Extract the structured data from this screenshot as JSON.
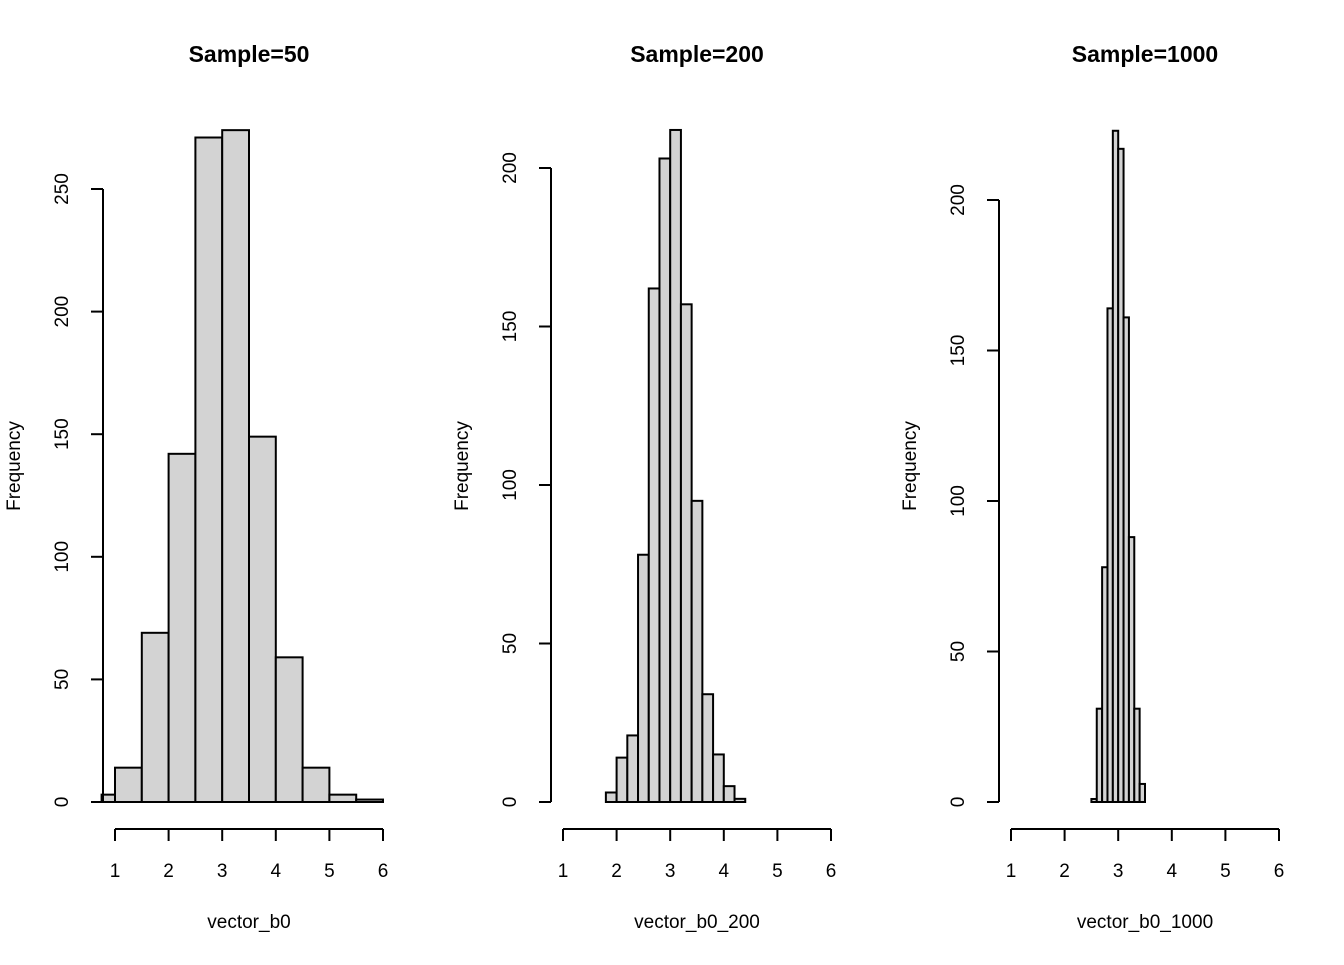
{
  "colors": {
    "bar_fill": "#d3d3d3",
    "bar_stroke": "#000000",
    "axis": "#000000",
    "background": "#ffffff"
  },
  "chart_data": [
    {
      "type": "bar",
      "title": "Sample=50",
      "xlabel": "vector_b0",
      "ylabel": "Frequency",
      "xlim": [
        1,
        6
      ],
      "xticks": [
        1,
        2,
        3,
        4,
        5,
        6
      ],
      "yticks": [
        0,
        50,
        100,
        150,
        200,
        250
      ],
      "grid": false,
      "legend": "none",
      "bins": [
        {
          "x0": 0.75,
          "x1": 1.0,
          "count": 3
        },
        {
          "x0": 1.0,
          "x1": 1.5,
          "count": 14
        },
        {
          "x0": 1.5,
          "x1": 2.0,
          "count": 69
        },
        {
          "x0": 2.0,
          "x1": 2.5,
          "count": 142
        },
        {
          "x0": 2.5,
          "x1": 3.0,
          "count": 271
        },
        {
          "x0": 3.0,
          "x1": 3.5,
          "count": 274
        },
        {
          "x0": 3.5,
          "x1": 4.0,
          "count": 149
        },
        {
          "x0": 4.0,
          "x1": 4.5,
          "count": 59
        },
        {
          "x0": 4.5,
          "x1": 5.0,
          "count": 14
        },
        {
          "x0": 5.0,
          "x1": 5.5,
          "count": 3
        },
        {
          "x0": 5.5,
          "x1": 6.0,
          "count": 1
        }
      ]
    },
    {
      "type": "bar",
      "title": "Sample=200",
      "xlabel": "vector_b0_200",
      "ylabel": "Frequency",
      "xlim": [
        1,
        6
      ],
      "xticks": [
        1,
        2,
        3,
        4,
        5,
        6
      ],
      "yticks": [
        0,
        50,
        100,
        150,
        200
      ],
      "grid": false,
      "legend": "none",
      "bins": [
        {
          "x0": 1.8,
          "x1": 2.0,
          "count": 3
        },
        {
          "x0": 2.0,
          "x1": 2.2,
          "count": 14
        },
        {
          "x0": 2.2,
          "x1": 2.4,
          "count": 21
        },
        {
          "x0": 2.4,
          "x1": 2.6,
          "count": 78
        },
        {
          "x0": 2.6,
          "x1": 2.8,
          "count": 162
        },
        {
          "x0": 2.8,
          "x1": 3.0,
          "count": 203
        },
        {
          "x0": 3.0,
          "x1": 3.2,
          "count": 212
        },
        {
          "x0": 3.2,
          "x1": 3.4,
          "count": 157
        },
        {
          "x0": 3.4,
          "x1": 3.6,
          "count": 95
        },
        {
          "x0": 3.6,
          "x1": 3.8,
          "count": 34
        },
        {
          "x0": 3.8,
          "x1": 4.0,
          "count": 15
        },
        {
          "x0": 4.0,
          "x1": 4.2,
          "count": 5
        },
        {
          "x0": 4.2,
          "x1": 4.4,
          "count": 1
        }
      ]
    },
    {
      "type": "bar",
      "title": "Sample=1000",
      "xlabel": "vector_b0_1000",
      "ylabel": "Frequency",
      "xlim": [
        1,
        6
      ],
      "xticks": [
        1,
        2,
        3,
        4,
        5,
        6
      ],
      "yticks": [
        0,
        50,
        100,
        150,
        200
      ],
      "grid": false,
      "legend": "none",
      "bins": [
        {
          "x0": 2.5,
          "x1": 2.6,
          "count": 1
        },
        {
          "x0": 2.6,
          "x1": 2.7,
          "count": 31
        },
        {
          "x0": 2.7,
          "x1": 2.8,
          "count": 78
        },
        {
          "x0": 2.8,
          "x1": 2.9,
          "count": 164
        },
        {
          "x0": 2.9,
          "x1": 3.0,
          "count": 223
        },
        {
          "x0": 3.0,
          "x1": 3.1,
          "count": 217
        },
        {
          "x0": 3.1,
          "x1": 3.2,
          "count": 161
        },
        {
          "x0": 3.2,
          "x1": 3.3,
          "count": 88
        },
        {
          "x0": 3.3,
          "x1": 3.4,
          "count": 31
        },
        {
          "x0": 3.4,
          "x1": 3.5,
          "count": 6
        }
      ]
    }
  ]
}
